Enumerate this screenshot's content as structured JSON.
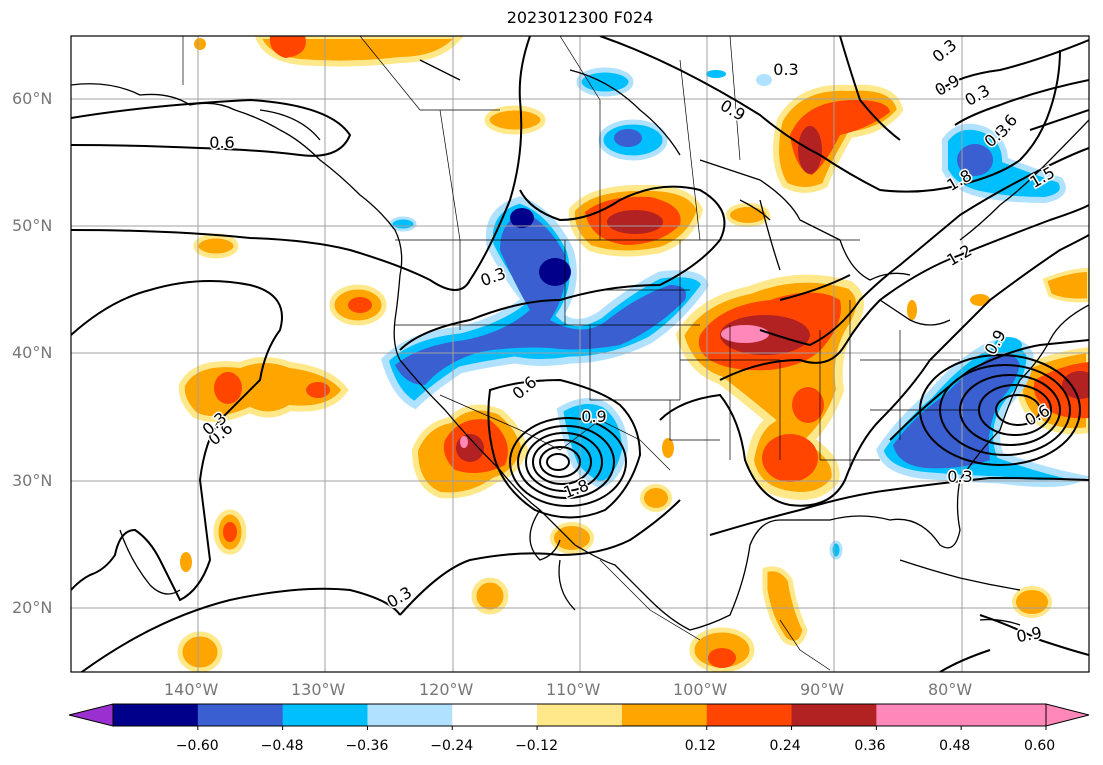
{
  "title": "2023012300 F024",
  "latitude_labels": [
    "60°N",
    "50°N",
    "40°N",
    "30°N",
    "20°N"
  ],
  "longitude_labels": [
    "140°W",
    "130°W",
    "120°W",
    "110°W",
    "100°W",
    "90°W",
    "80°W"
  ],
  "colorbar": {
    "ticks": [
      "−0.60",
      "−0.48",
      "−0.36",
      "−0.24",
      "−0.12",
      "0.12",
      "0.24",
      "0.36",
      "0.48",
      "0.60"
    ],
    "colors": [
      "#9b30d0",
      "#00008b",
      "#3a5fd0",
      "#00bfff",
      "#b0e2ff",
      "#ffffff",
      "#ffe88a",
      "#ffa500",
      "#ff4500",
      "#b22222",
      "#ff88b8",
      "#ff88b8"
    ]
  },
  "contour_labels": [
    "0.6",
    "0.6",
    "0.3",
    "0.3",
    "0.6",
    "0.9",
    "1.8",
    "0.3",
    "0.3",
    "0.9",
    "0.6",
    "0.9",
    "1.2",
    "1.5",
    "1.8",
    "0.6",
    "0.3",
    "0.3",
    "0.9",
    "0.3",
    "0.3",
    "0.9"
  ],
  "palette": {
    "frame": "#000000",
    "grid": "#a0a0a0",
    "contour": "#000000"
  }
}
